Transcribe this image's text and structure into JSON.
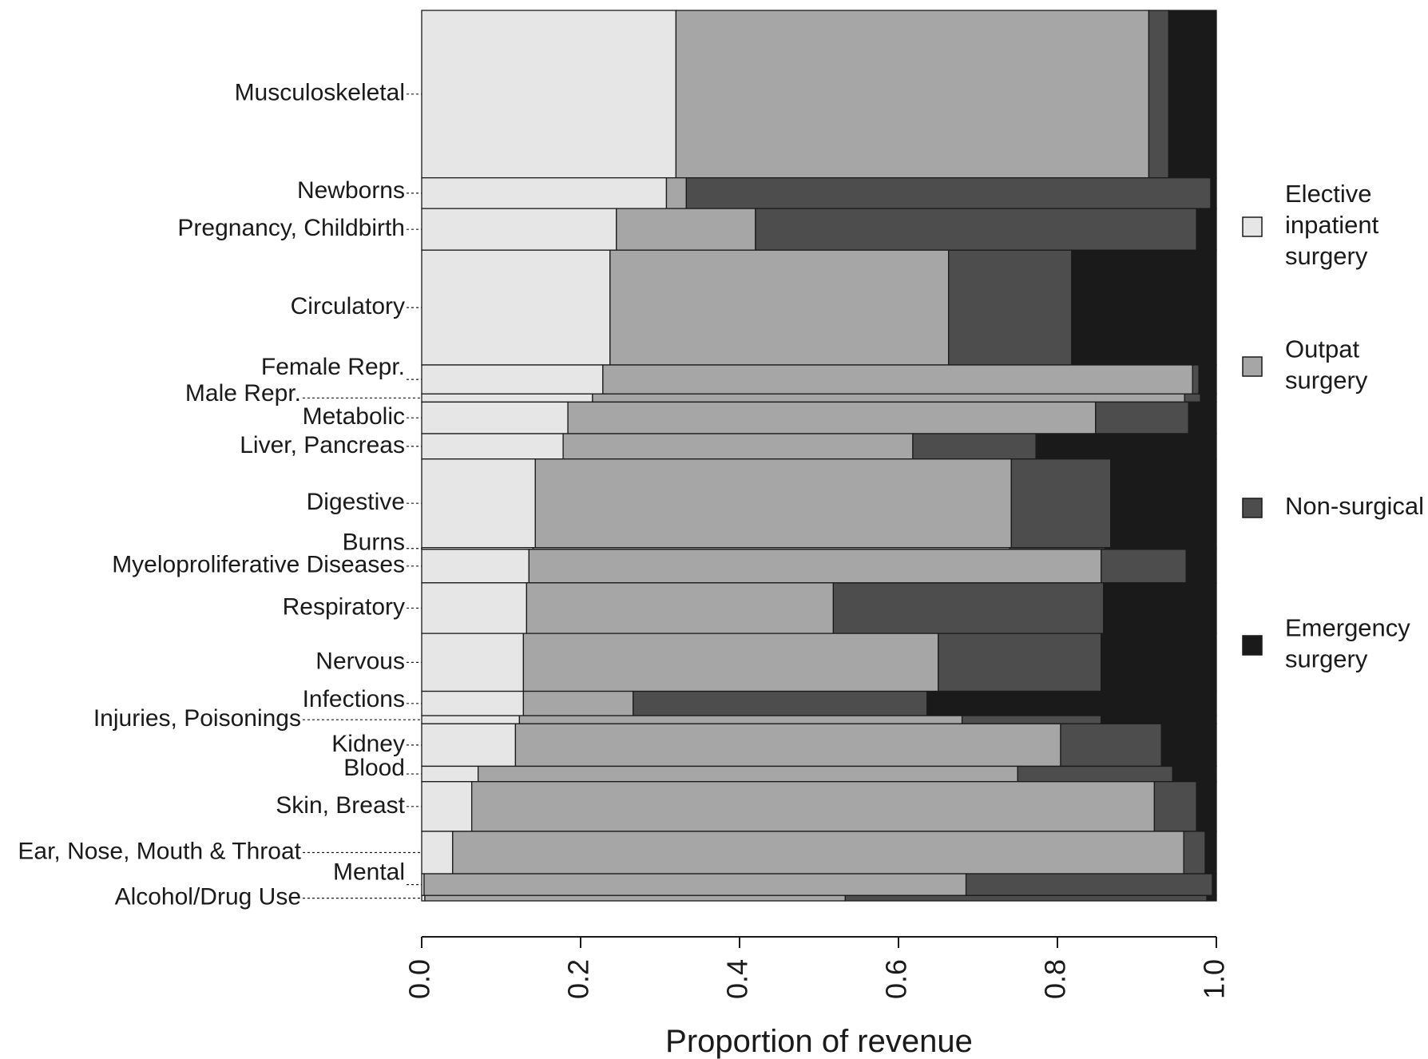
{
  "chart_data": {
    "type": "bar",
    "subtype": "marimekko",
    "title": "",
    "xlabel": "Proportion of revenue",
    "ylabel": "",
    "xlim": [
      0,
      1
    ],
    "x_ticks": [
      "0.0",
      "0.2",
      "0.4",
      "0.6",
      "0.8",
      "1.0"
    ],
    "grid": false,
    "legend_position": "right",
    "series": [
      {
        "name": "Elective inpatient surgery",
        "label_lines": [
          "Elective",
          "inpatient",
          "surgery"
        ],
        "color": "#e6e6e6"
      },
      {
        "name": "Outpat surgery",
        "label_lines": [
          "Outpat",
          "surgery"
        ],
        "color": "#a6a6a6"
      },
      {
        "name": "Non-surgical",
        "label_lines": [
          "Non-surgical"
        ],
        "color": "#4d4d4d"
      },
      {
        "name": "Emergency surgery",
        "label_lines": [
          "Emergency",
          "surgery"
        ],
        "color": "#1a1a1a"
      }
    ],
    "categories": [
      {
        "label": "Musculoskeletal",
        "share": 0.2081,
        "values": [
          0.32,
          0.595,
          0.025,
          0.06
        ]
      },
      {
        "label": "Newborns",
        "share": 0.0382,
        "values": [
          0.308,
          0.025,
          0.66,
          0.007
        ]
      },
      {
        "label": "Pregnancy, Childbirth",
        "share": 0.0517,
        "values": [
          0.245,
          0.175,
          0.555,
          0.025
        ]
      },
      {
        "label": "Circulatory",
        "share": 0.1427,
        "values": [
          0.237,
          0.426,
          0.155,
          0.182
        ]
      },
      {
        "label": "Female Repr.",
        "share": 0.036,
        "values": [
          0.228,
          0.742,
          0.008,
          0.022
        ]
      },
      {
        "label": "Male Repr.",
        "share": 0.0101,
        "values": [
          0.215,
          0.745,
          0.02,
          0.02
        ]
      },
      {
        "label": "Metabolic",
        "share": 0.0393,
        "values": [
          0.184,
          0.664,
          0.117,
          0.035
        ]
      },
      {
        "label": "Liver, Pancreas",
        "share": 0.0315,
        "values": [
          0.178,
          0.44,
          0.155,
          0.227
        ]
      },
      {
        "label": "Digestive",
        "share": 0.1101,
        "values": [
          0.143,
          0.599,
          0.125,
          0.133
        ]
      },
      {
        "label": "Burns",
        "share": 0.0022,
        "values": [
          0.14,
          0.6,
          0.12,
          0.14
        ]
      },
      {
        "label": "Myeloproliferative Diseases",
        "share": 0.0416,
        "values": [
          0.135,
          0.72,
          0.107,
          0.038
        ]
      },
      {
        "label": "Respiratory",
        "share": 0.0629,
        "values": [
          0.132,
          0.386,
          0.34,
          0.142
        ]
      },
      {
        "label": "Nervous",
        "share": 0.0719,
        "values": [
          0.128,
          0.522,
          0.205,
          0.145
        ]
      },
      {
        "label": "Infections",
        "share": 0.0303,
        "values": [
          0.128,
          0.138,
          0.37,
          0.364
        ]
      },
      {
        "label": "Injuries, Poisonings",
        "share": 0.0101,
        "values": [
          0.123,
          0.557,
          0.175,
          0.145
        ]
      },
      {
        "label": "Kidney",
        "share": 0.0528,
        "values": [
          0.118,
          0.686,
          0.127,
          0.069
        ]
      },
      {
        "label": "Blood",
        "share": 0.0191,
        "values": [
          0.071,
          0.679,
          0.195,
          0.055
        ]
      },
      {
        "label": "Skin, Breast",
        "share": 0.0618,
        "values": [
          0.063,
          0.859,
          0.053,
          0.025
        ]
      },
      {
        "label": "Ear, Nose, Mouth & Throat",
        "share": 0.0527,
        "values": [
          0.039,
          0.92,
          0.027,
          0.014
        ]
      },
      {
        "label": "Mental",
        "share": 0.027,
        "values": [
          0.003,
          0.682,
          0.31,
          0.005
        ]
      },
      {
        "label": "Alcohol/Drug Use",
        "share": 0.0067,
        "values": [
          0.004,
          0.529,
          0.455,
          0.012
        ]
      }
    ]
  }
}
